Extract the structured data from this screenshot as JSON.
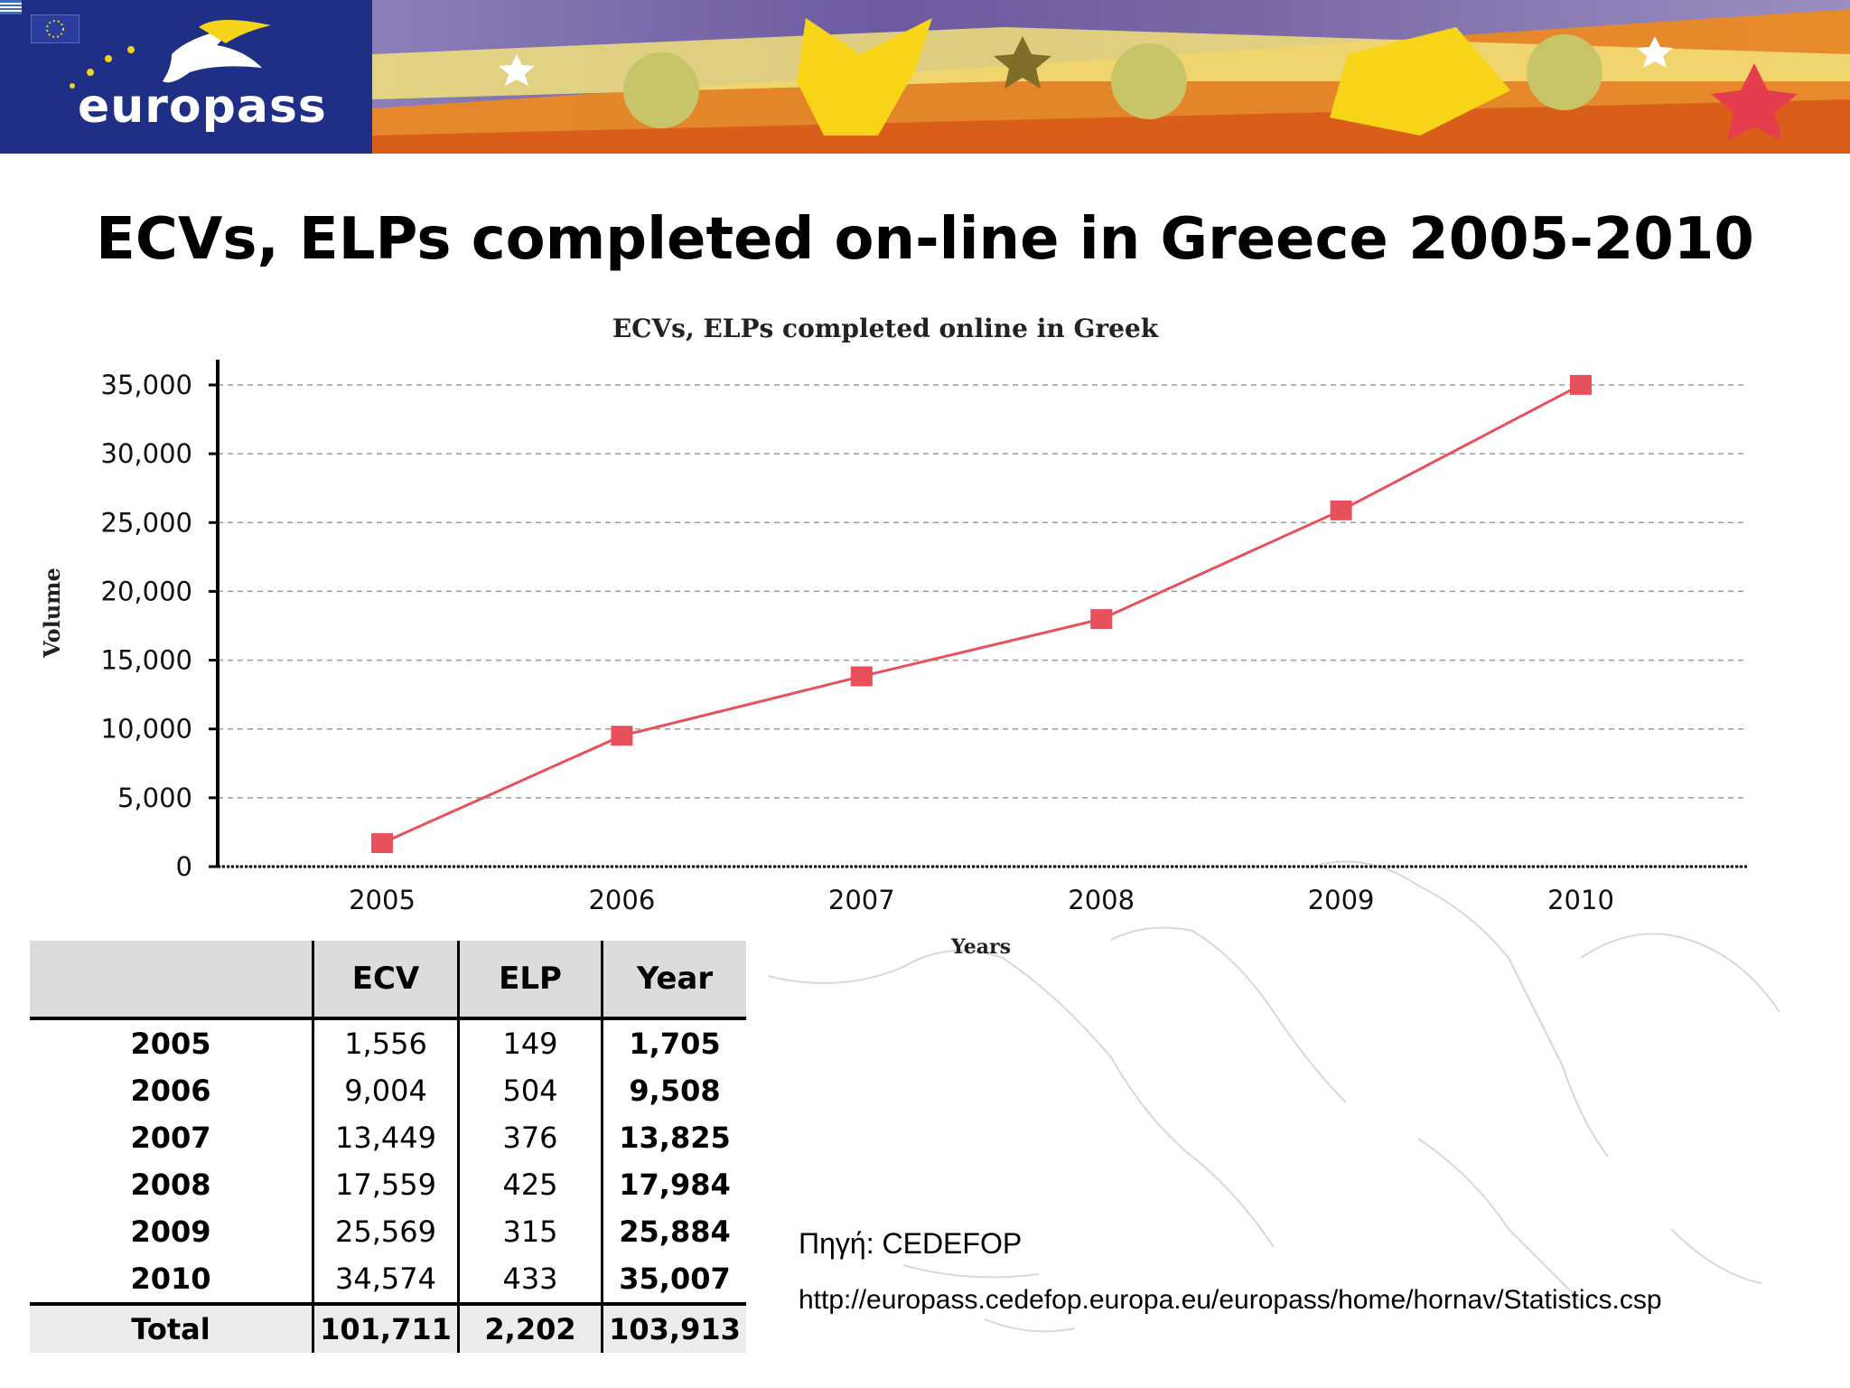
{
  "banner": {
    "logo_text": "europass",
    "colors": {
      "logo_bg": "#1f2f86",
      "art_blue": "#3f5ca8",
      "art_orange": "#ef8a1c",
      "art_yellow": "#f7d417",
      "art_purple": "#7a6aa8"
    }
  },
  "slide": {
    "title": "ECVs, ELPs completed on-line in Greece 2005-2010"
  },
  "chart_data": {
    "type": "line",
    "title": "ECVs, ELPs completed online in Greek",
    "xlabel": "Years",
    "ylabel": "Volume",
    "x": [
      "2005",
      "2006",
      "2007",
      "2008",
      "2009",
      "2010"
    ],
    "series": [
      {
        "values": [
          1705,
          9508,
          13825,
          17984,
          25884,
          35007
        ],
        "color": "#e8505b"
      }
    ],
    "ylim": [
      0,
      35000
    ],
    "yticks": [
      "0",
      "5,000",
      "10,000",
      "15,000",
      "20,000",
      "25,000",
      "30,000",
      "35,000"
    ],
    "grid": true,
    "legend": "none"
  },
  "table": {
    "headers": [
      "",
      "ECV",
      "ELP",
      "Year"
    ],
    "rows": [
      [
        "2005",
        "1,556",
        "149",
        "1,705"
      ],
      [
        "2006",
        "9,004",
        "504",
        "9,508"
      ],
      [
        "2007",
        "13,449",
        "376",
        "13,825"
      ],
      [
        "2008",
        "17,559",
        "425",
        "17,984"
      ],
      [
        "2009",
        "25,569",
        "315",
        "25,884"
      ],
      [
        "2010",
        "34,574",
        "433",
        "35,007"
      ]
    ],
    "total": [
      "Total",
      "101,711",
      "2,202",
      "103,913"
    ]
  },
  "source": {
    "label": "Πηγή: CEDEFOP",
    "url": "http://europass.cedefop.europa.eu/europass/home/hornav/Statistics.csp"
  }
}
